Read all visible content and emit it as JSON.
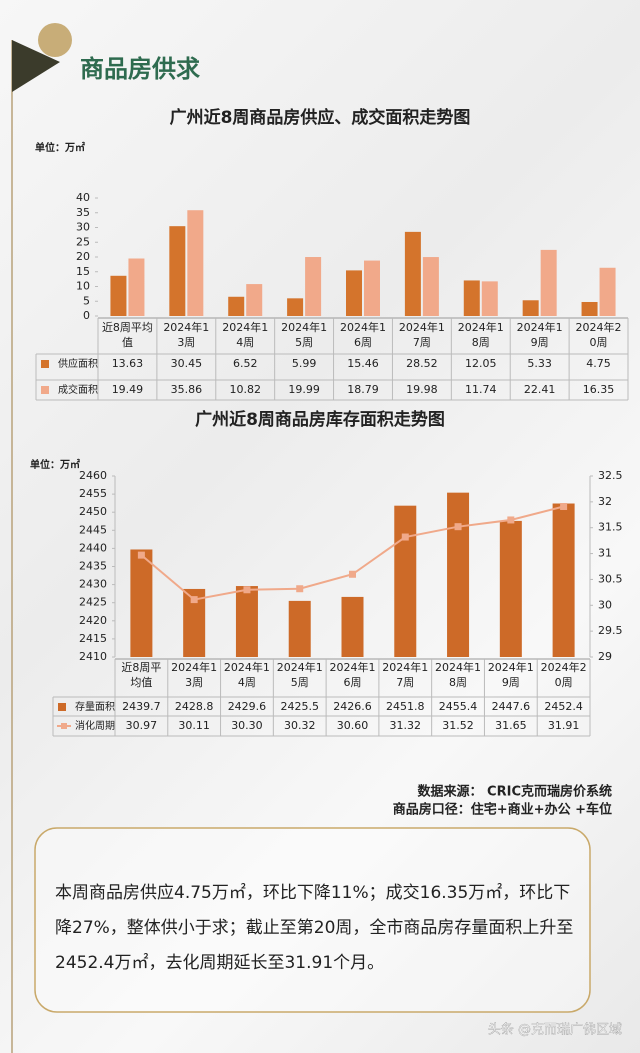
{
  "header": {
    "title": "商品房供求"
  },
  "chart_data": [
    {
      "type": "bar",
      "title": "广州近8周商品房供应、成交面积走势图",
      "unit_label": "单位：万㎡",
      "categories": [
        "近8周平均值",
        "2024年13周",
        "2024年14周",
        "2024年15周",
        "2024年16周",
        "2024年17周",
        "2024年18周",
        "2024年19周",
        "2024年20周"
      ],
      "series": [
        {
          "name": "供应面积",
          "color": "#d4742c",
          "values": [
            13.63,
            30.45,
            6.52,
            5.99,
            15.46,
            28.52,
            12.05,
            5.33,
            4.75
          ]
        },
        {
          "name": "成交面积",
          "color": "#f1a98a",
          "values": [
            19.49,
            35.86,
            10.82,
            19.99,
            18.79,
            19.98,
            11.74,
            22.41,
            16.35
          ]
        }
      ],
      "ylim": [
        0,
        40
      ],
      "yticks": [
        0,
        5,
        10,
        15,
        20,
        25,
        30,
        35,
        40
      ]
    },
    {
      "type": "combo",
      "title": "广州近8周商品房库存面积走势图",
      "unit_label": "单位：万㎡",
      "categories": [
        "近8周平均值",
        "2024年13周",
        "2024年14周",
        "2024年15周",
        "2024年16周",
        "2024年17周",
        "2024年18周",
        "2024年19周",
        "2024年20周"
      ],
      "series": [
        {
          "name": "存量面积",
          "color": "#cd6a28",
          "values": [
            2439.7,
            2428.8,
            2429.6,
            2425.5,
            2426.6,
            2451.8,
            2455.4,
            2447.6,
            2452.4
          ]
        },
        {
          "name": "消化周期",
          "color": "#f0a98a",
          "axis": "y2",
          "values": [
            30.97,
            30.11,
            30.3,
            30.32,
            30.6,
            31.32,
            31.52,
            31.65,
            31.91
          ],
          "value_labels": [
            "30.97",
            "30.11",
            "30.30",
            "30.32",
            "30.60",
            "31.32",
            "31.52",
            "31.65",
            "31.91"
          ]
        }
      ],
      "ylim": [
        2410,
        2460
      ],
      "yticks": [
        2410,
        2415,
        2420,
        2425,
        2430,
        2435,
        2440,
        2445,
        2450,
        2455,
        2460
      ],
      "y2lim": [
        29,
        32.5
      ],
      "y2ticks": [
        29,
        29.5,
        30,
        30.5,
        31,
        31.5,
        32,
        32.5
      ]
    }
  ],
  "notes": {
    "source": "数据来源：  CRIC克而瑞房价系统",
    "scope": "商品房口径：住宅+商业+办公 +车位"
  },
  "summary": "本周商品房供应4.75万㎡，环比下降11%；成交16.35万㎡，环比下降27%，整体供小于求；截止至第20周，全市商品房存量面积上升至2452.4万㎡，去化周期延长至31.91个月。",
  "watermark": "头条 @克而瑞广佛区域"
}
